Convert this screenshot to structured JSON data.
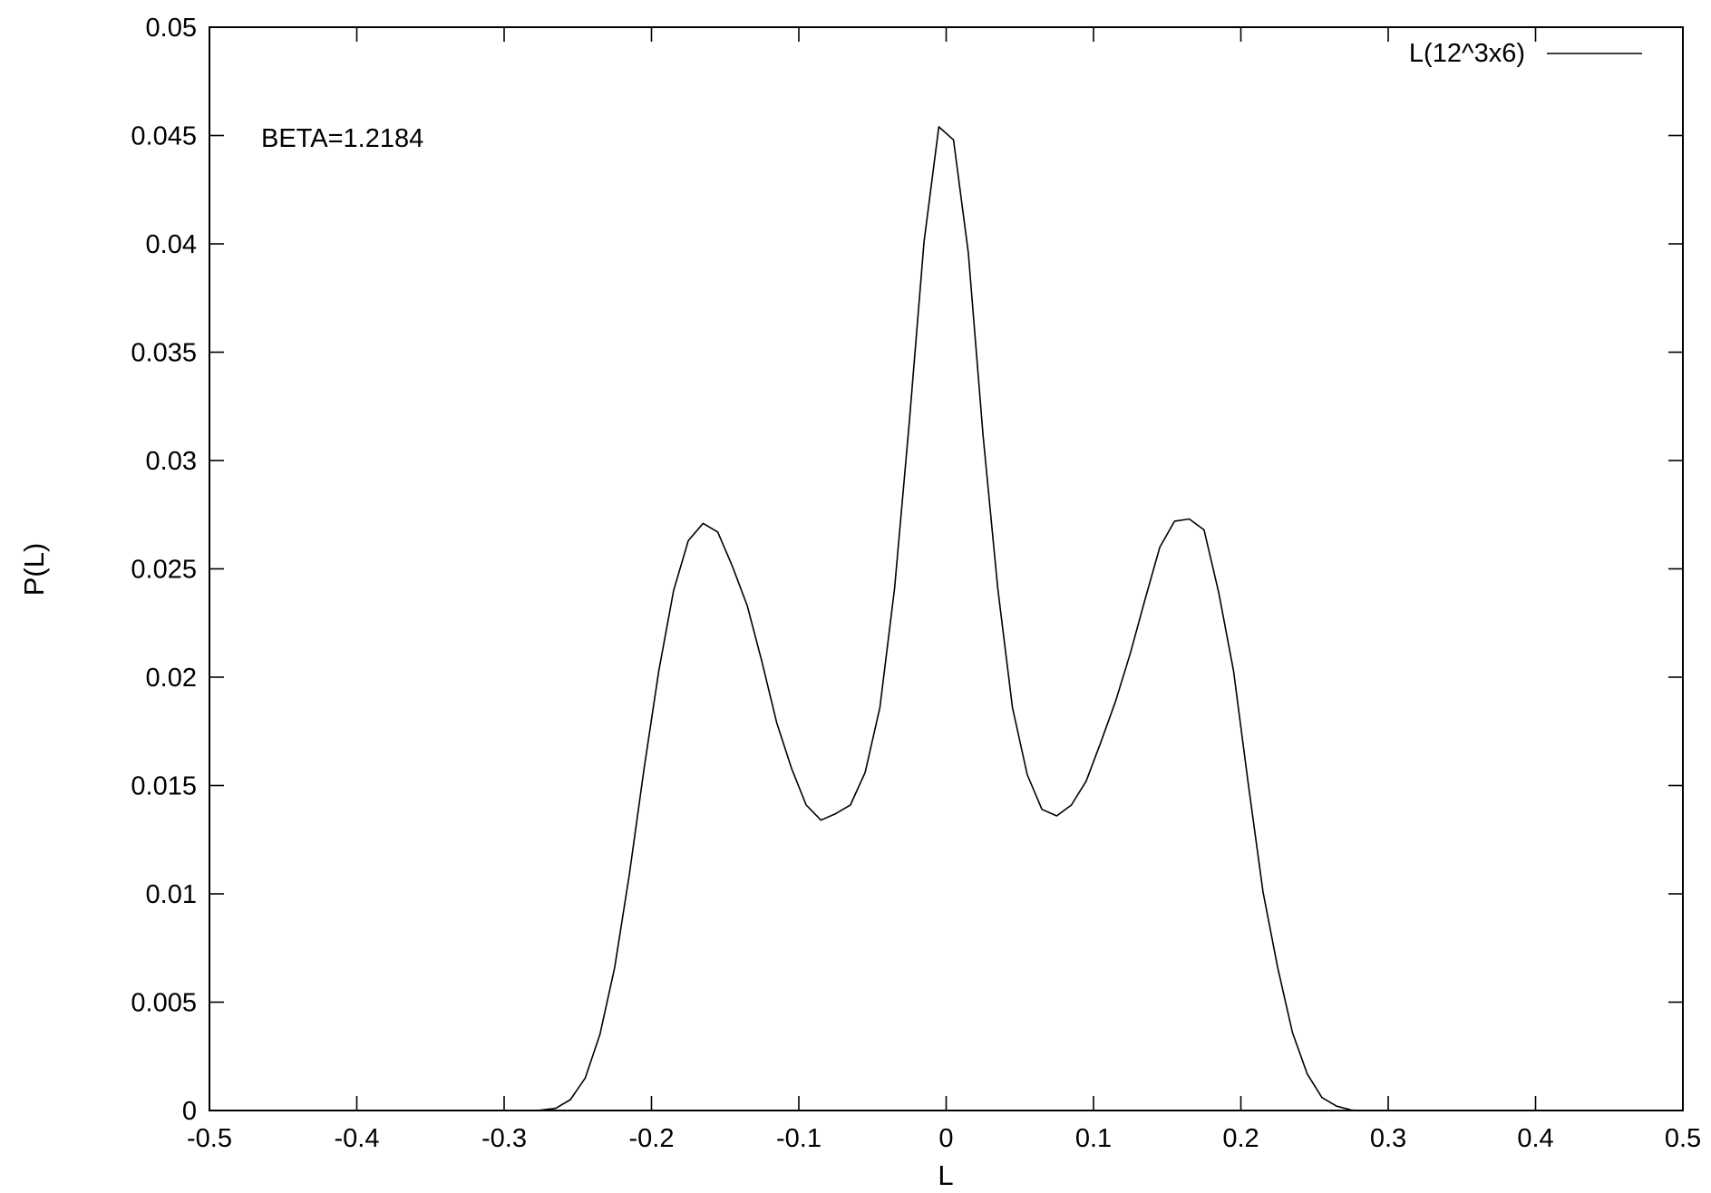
{
  "chart_data": {
    "type": "line",
    "title": "",
    "xlabel": "L",
    "ylabel": "P(L)",
    "xlim": [
      -0.5,
      0.5
    ],
    "ylim": [
      0,
      0.05
    ],
    "x_ticks": [
      -0.5,
      -0.4,
      -0.3,
      -0.2,
      -0.1,
      0,
      0.1,
      0.2,
      0.3,
      0.4,
      0.5
    ],
    "x_tick_labels": [
      "-0.5",
      "-0.4",
      "-0.3",
      "-0.2",
      "-0.1",
      "0",
      "0.1",
      "0.2",
      "0.3",
      "0.4",
      "0.5"
    ],
    "y_ticks": [
      0,
      0.005,
      0.01,
      0.015,
      0.02,
      0.025,
      0.03,
      0.035,
      0.04,
      0.045,
      0.05
    ],
    "y_tick_labels": [
      "0",
      "0.005",
      "0.01",
      "0.015",
      "0.02",
      "0.025",
      "0.03",
      "0.035",
      "0.04",
      "0.045",
      "0.05"
    ],
    "grid": false,
    "legend_position": "top-right",
    "annotations": [
      {
        "text": "BETA=1.2184",
        "x": -0.465,
        "y": 0.0448
      }
    ],
    "series": [
      {
        "name": "L(12^3x6)",
        "color": "#000000",
        "x": [
          -0.28,
          -0.275,
          -0.265,
          -0.255,
          -0.245,
          -0.235,
          -0.225,
          -0.215,
          -0.205,
          -0.195,
          -0.185,
          -0.175,
          -0.165,
          -0.155,
          -0.145,
          -0.135,
          -0.125,
          -0.115,
          -0.105,
          -0.095,
          -0.085,
          -0.075,
          -0.065,
          -0.055,
          -0.045,
          -0.035,
          -0.025,
          -0.015,
          -0.005,
          0.005,
          0.015,
          0.025,
          0.035,
          0.045,
          0.055,
          0.065,
          0.075,
          0.085,
          0.095,
          0.105,
          0.115,
          0.125,
          0.135,
          0.145,
          0.155,
          0.165,
          0.175,
          0.185,
          0.195,
          0.205,
          0.215,
          0.225,
          0.235,
          0.245,
          0.255,
          0.265,
          0.275,
          0.28
        ],
        "y": [
          0,
          2e-05,
          0.0001,
          0.0005,
          0.0015,
          0.0035,
          0.0066,
          0.0109,
          0.0158,
          0.0203,
          0.024,
          0.0263,
          0.0271,
          0.0267,
          0.0251,
          0.0233,
          0.0207,
          0.0179,
          0.0158,
          0.0141,
          0.0134,
          0.0137,
          0.0141,
          0.0156,
          0.0186,
          0.0241,
          0.0318,
          0.0401,
          0.0454,
          0.0448,
          0.0396,
          0.0312,
          0.0241,
          0.0186,
          0.0155,
          0.0139,
          0.0136,
          0.0141,
          0.0152,
          0.017,
          0.0189,
          0.0211,
          0.0236,
          0.026,
          0.0272,
          0.0273,
          0.0268,
          0.0239,
          0.0203,
          0.0151,
          0.0101,
          0.0066,
          0.0036,
          0.0017,
          0.0006,
          0.0002,
          2e-05,
          0
        ]
      }
    ]
  }
}
